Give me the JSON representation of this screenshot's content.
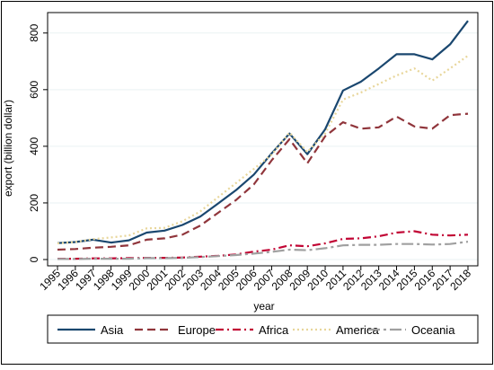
{
  "chart_data": {
    "type": "line",
    "title": "",
    "xlabel": "year",
    "ylabel": "export (billion dollar)",
    "x": [
      "1995",
      "1996",
      "1997",
      "1998",
      "1999",
      "2000",
      "2001",
      "2002",
      "2003",
      "2004",
      "2005",
      "2006",
      "2007",
      "2008",
      "2009",
      "2010",
      "2011",
      "2012",
      "2013",
      "2014",
      "2015",
      "2016",
      "2017",
      "2018"
    ],
    "ylim": [
      0,
      850
    ],
    "yticks": [
      0,
      200,
      400,
      600,
      800
    ],
    "grid": "horizontal",
    "legend_position": "bottom",
    "series": [
      {
        "name": "Asia",
        "color": "#1a476f",
        "dash": "solid",
        "values": [
          58,
          62,
          70,
          60,
          68,
          95,
          102,
          122,
          152,
          198,
          245,
          300,
          375,
          445,
          372,
          460,
          597,
          628,
          675,
          725,
          725,
          707,
          760,
          843
        ]
      },
      {
        "name": "Europe",
        "color": "#90353b",
        "dash": "dash",
        "values": [
          35,
          37,
          42,
          45,
          50,
          70,
          75,
          88,
          120,
          165,
          210,
          265,
          350,
          425,
          340,
          435,
          485,
          462,
          467,
          505,
          470,
          462,
          510,
          515
        ]
      },
      {
        "name": "Africa",
        "color": "#c10534",
        "dash": "dashdot",
        "values": [
          3,
          3,
          4,
          4,
          5,
          6,
          6,
          7,
          10,
          13,
          18,
          28,
          35,
          50,
          47,
          57,
          73,
          75,
          82,
          95,
          100,
          88,
          85,
          88
        ]
      },
      {
        "name": "America",
        "color": "#e8d69a",
        "dash": "dot",
        "values": [
          57,
          62,
          72,
          78,
          85,
          110,
          112,
          135,
          170,
          220,
          270,
          320,
          370,
          448,
          380,
          445,
          565,
          590,
          620,
          650,
          675,
          632,
          675,
          720
        ]
      },
      {
        "name": "Oceania",
        "color": "#a0a0a0",
        "dash": "longdashdot",
        "values": [
          2,
          2,
          3,
          3,
          3,
          5,
          5,
          6,
          9,
          12,
          16,
          21,
          27,
          35,
          33,
          40,
          50,
          52,
          52,
          55,
          55,
          53,
          55,
          63
        ]
      }
    ]
  }
}
